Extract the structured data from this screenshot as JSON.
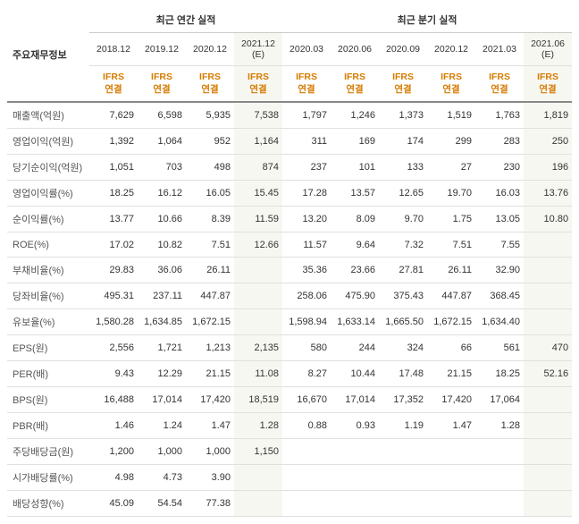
{
  "header": {
    "row_label": "주요재무정보",
    "annual_group": "최근 연간 실적",
    "quarter_group": "최근 분기 실적",
    "annual_periods": [
      "2018.12",
      "2019.12",
      "2020.12",
      "2021.12 (E)"
    ],
    "quarter_periods": [
      "2020.03",
      "2020.06",
      "2020.09",
      "2020.12",
      "2021.03",
      "2021.06 (E)"
    ],
    "ifrs_label": "IFRS",
    "ifrs_sub": "연결"
  },
  "columns": {
    "estimate_cols": [
      3,
      9
    ]
  },
  "rows": [
    {
      "label": "매출액(억원)",
      "vals": [
        "7,629",
        "6,598",
        "5,935",
        "7,538",
        "1,797",
        "1,246",
        "1,373",
        "1,519",
        "1,763",
        "1,819"
      ]
    },
    {
      "label": "영업이익(억원)",
      "vals": [
        "1,392",
        "1,064",
        "952",
        "1,164",
        "311",
        "169",
        "174",
        "299",
        "283",
        "250"
      ]
    },
    {
      "label": "당기순이익(억원)",
      "vals": [
        "1,051",
        "703",
        "498",
        "874",
        "237",
        "101",
        "133",
        "27",
        "230",
        "196"
      ],
      "sep": true
    },
    {
      "label": "영업이익률(%)",
      "vals": [
        "18.25",
        "16.12",
        "16.05",
        "15.45",
        "17.28",
        "13.57",
        "12.65",
        "19.70",
        "16.03",
        "13.76"
      ]
    },
    {
      "label": "순이익률(%)",
      "vals": [
        "13.77",
        "10.66",
        "8.39",
        "11.59",
        "13.20",
        "8.09",
        "9.70",
        "1.75",
        "13.05",
        "10.80"
      ]
    },
    {
      "label": "ROE(%)",
      "vals": [
        "17.02",
        "10.82",
        "7.51",
        "12.66",
        "11.57",
        "9.64",
        "7.32",
        "7.51",
        "7.55",
        ""
      ],
      "sep": true
    },
    {
      "label": "부채비율(%)",
      "vals": [
        "29.83",
        "36.06",
        "26.11",
        "",
        "35.36",
        "23.66",
        "27.81",
        "26.11",
        "32.90",
        ""
      ]
    },
    {
      "label": "당좌비율(%)",
      "vals": [
        "495.31",
        "237.11",
        "447.87",
        "",
        "258.06",
        "475.90",
        "375.43",
        "447.87",
        "368.45",
        ""
      ]
    },
    {
      "label": "유보율(%)",
      "vals": [
        "1,580.28",
        "1,634.85",
        "1,672.15",
        "",
        "1,598.94",
        "1,633.14",
        "1,665.50",
        "1,672.15",
        "1,634.40",
        ""
      ],
      "sep": true
    },
    {
      "label": "EPS(원)",
      "vals": [
        "2,556",
        "1,721",
        "1,213",
        "2,135",
        "580",
        "244",
        "324",
        "66",
        "561",
        "470"
      ]
    },
    {
      "label": "PER(배)",
      "vals": [
        "9.43",
        "12.29",
        "21.15",
        "11.08",
        "8.27",
        "10.44",
        "17.48",
        "21.15",
        "18.25",
        "52.16"
      ]
    },
    {
      "label": "BPS(원)",
      "vals": [
        "16,488",
        "17,014",
        "17,420",
        "18,519",
        "16,670",
        "17,014",
        "17,352",
        "17,420",
        "17,064",
        ""
      ]
    },
    {
      "label": "PBR(배)",
      "vals": [
        "1.46",
        "1.24",
        "1.47",
        "1.28",
        "0.88",
        "0.93",
        "1.19",
        "1.47",
        "1.28",
        ""
      ],
      "sep": true
    },
    {
      "label": "주당배당금(원)",
      "vals": [
        "1,200",
        "1,000",
        "1,000",
        "1,150",
        "",
        "",
        "",
        "",
        "",
        ""
      ]
    },
    {
      "label": "시가배당률(%)",
      "vals": [
        "4.98",
        "4.73",
        "3.90",
        "",
        "",
        "",
        "",
        "",
        "",
        ""
      ]
    },
    {
      "label": "배당성향(%)",
      "vals": [
        "45.09",
        "54.54",
        "77.38",
        "",
        "",
        "",
        "",
        "",
        "",
        ""
      ]
    }
  ],
  "style": {
    "text_color": "#333333",
    "label_color": "#555555",
    "ifrs_color": "#d67b00",
    "border_color": "#e0e0e0",
    "est_bg": "#f7f7f2"
  }
}
